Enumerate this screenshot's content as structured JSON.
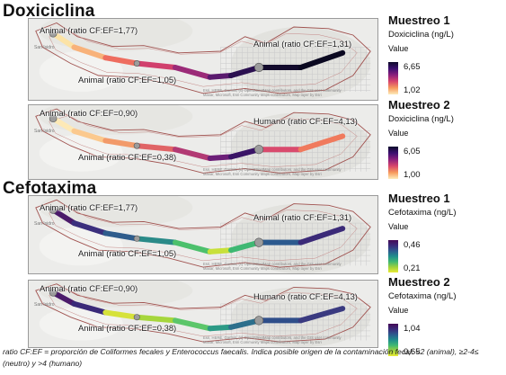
{
  "sections": [
    {
      "title": "Doxiciclina"
    },
    {
      "title": "Cefotaxima"
    }
  ],
  "panels": [
    {
      "legend": {
        "title": "Muestreo 1",
        "variable": "Doxiciclina (ng/L)",
        "value_label": "Value",
        "max": "6,65",
        "min": "1,02",
        "ramp": [
          "#fdecbb",
          "#f69a5c",
          "#d8456c",
          "#8b1f7c",
          "#3b0f70",
          "#0d0a2a"
        ]
      },
      "annotations": [
        {
          "text": "Animal (ratio CF:EF=1,77)"
        },
        {
          "text": "Animal (ratio CF:EF=1,31)"
        },
        {
          "text": "Animal (ratio CF:EF=1,05)"
        }
      ],
      "river_colors": [
        "#fce3a6",
        "#f8b27a",
        "#ee6d5f",
        "#d1406d",
        "#9b2b78",
        "#5a1a6e",
        "#2b1050",
        "#120a2c",
        "#0a0820",
        "#0a0820"
      ]
    },
    {
      "legend": {
        "title": "Muestreo 2",
        "variable": "Doxiciclina (ng/L)",
        "value_label": "Value",
        "max": "6,05",
        "min": "1,00",
        "ramp": [
          "#fdecbb",
          "#f69a5c",
          "#d8456c",
          "#8b1f7c",
          "#3b0f70",
          "#0d0a2a"
        ]
      },
      "annotations": [
        {
          "text": "Animal (ratio CF:EF=0,90)"
        },
        {
          "text": "Humano (ratio CF:EF=4,13)"
        },
        {
          "text": "Animal (ratio CF:EF=0,38)"
        }
      ],
      "river_colors": [
        "#fde9b6",
        "#fbc98e",
        "#f29a6a",
        "#e06466",
        "#b23a74",
        "#6c1f78",
        "#3a1466",
        "#d94a6d",
        "#f07a5d",
        "#f59a5a"
      ]
    },
    {
      "legend": {
        "title": "Muestreo 1",
        "variable": "Cefotaxima (ng/L)",
        "value_label": "Value",
        "max": "0,46",
        "min": "0,21",
        "ramp": [
          "#e8ea36",
          "#9fd13c",
          "#3fb873",
          "#1f8d8c",
          "#2c5a8e",
          "#3a2a7a",
          "#440a56"
        ]
      },
      "annotations": [
        {
          "text": "Animal (ratio CF:EF=1,77)"
        },
        {
          "text": "Animal (ratio CF:EF=1,31)"
        },
        {
          "text": "Animal (ratio CF:EF=1,05)"
        }
      ],
      "river_colors": [
        "#4b1a6a",
        "#3b2f7d",
        "#2f5c8c",
        "#2a8a88",
        "#4cc06c",
        "#c8e03a",
        "#3fb873",
        "#2c5a8e",
        "#3b2a78",
        "#3b2a78"
      ]
    },
    {
      "legend": {
        "title": "Muestreo 2",
        "variable": "Cefotaxima (ng/L)",
        "value_label": "Value",
        "max": "1,04",
        "min": "0,65",
        "ramp": [
          "#e8ea36",
          "#9fd13c",
          "#3fb873",
          "#1f8d8c",
          "#2c5a8e",
          "#3a2a7a",
          "#440a56"
        ]
      },
      "annotations": [
        {
          "text": "Animal (ratio CF:EF=0,90)"
        },
        {
          "text": "Humano (ratio CF:EF=4,13)"
        },
        {
          "text": "Animal (ratio CF:EF=0,38)"
        }
      ],
      "river_colors": [
        "#4b1a6a",
        "#3a2a78",
        "#d6e23a",
        "#a6d63c",
        "#5cc66a",
        "#2c9a86",
        "#2c6f8c",
        "#2f4e8a",
        "#3a3a80",
        "#3a3a80"
      ]
    }
  ],
  "map_labels": {
    "place": "San Isidro",
    "credit_line1": "Esri, HERE, Garmin, (c) OpenStreetMap contributors, and the GIS user community",
    "credit_line2": "Maxar, Microsoft, Esri Community Maps contributors, Map layer by Esri"
  },
  "footnote": "ratio CF:EF = proporción de Coliformes fecales y Enterococcus faecalis. Indica posible origen de la contaminación fecal: <2 (animal), ≥2-4≤ (neutro) y >4 (humano)",
  "colors": {
    "catchment_outline": "#a0524f",
    "panel_bg": "#ececea",
    "grid": "#c9c9c9",
    "sample_point": "#9c9c9c"
  }
}
